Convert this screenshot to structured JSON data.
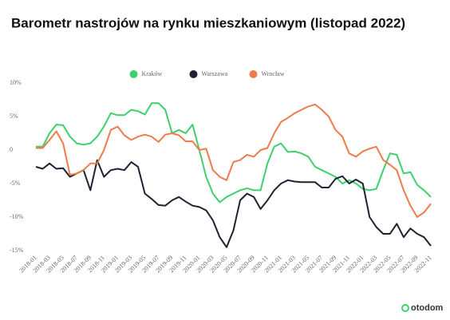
{
  "chart_data": {
    "type": "line",
    "title": "Barometr nastrojów na rynku mieszkaniowym (listopad 2022)",
    "brand": "otodom",
    "categories": [
      "2018-01",
      null,
      "2018-03",
      null,
      "2018-05",
      null,
      "2018-07",
      null,
      "2018-09",
      null,
      "2018-11",
      null,
      "2019-01",
      null,
      "2019-03",
      null,
      "2019-05",
      null,
      "2019-07",
      null,
      "2019-09",
      null,
      "2019-11",
      null,
      "2020-01",
      null,
      "2020-03",
      null,
      "2020-05",
      null,
      "2020-07",
      null,
      "2020-09",
      null,
      "2020-11",
      null,
      "2021-01",
      null,
      "2021-03",
      null,
      "2021-05",
      null,
      "2021-07",
      null,
      "2021-09",
      null,
      "2021-11",
      null,
      "2022-01",
      null,
      "2022-03",
      null,
      "2022-05",
      null,
      "2022-07",
      null,
      "2022-09",
      null,
      "2022-11"
    ],
    "series": [
      {
        "name": "Kraków",
        "color": "#3ecf6e",
        "values": [
          0.5,
          0.5,
          2.5,
          3.8,
          3.7,
          2,
          1,
          0.8,
          1,
          2,
          3.5,
          5.5,
          5.2,
          5.2,
          6,
          5.8,
          5.3,
          7,
          7,
          6,
          2.5,
          3,
          2.5,
          3.8,
          0,
          -4,
          -6.5,
          -7.8,
          -7,
          -6.5,
          -6,
          -5.7,
          -6,
          -6,
          -2,
          0.5,
          1,
          -0.3,
          -0.2,
          -0.5,
          -1,
          -2.5,
          -3,
          -3.5,
          -4,
          -5,
          -4.5,
          -5,
          -5.8,
          -6,
          -5.8,
          -3,
          -0.5,
          -0.7,
          -3.5,
          -3.3,
          -5.2,
          -6,
          -7
        ]
      },
      {
        "name": "Warszawa",
        "color": "#1c2333",
        "values": [
          -2.5,
          -2.8,
          -2,
          -2.8,
          -2.7,
          -4,
          -3.5,
          -3,
          -6,
          -1.5,
          -4,
          -3,
          -2.8,
          -3,
          -1.8,
          -2.5,
          -6.5,
          -7.3,
          -8.2,
          -8.3,
          -7.5,
          -7,
          -7.7,
          -8.3,
          -8.5,
          -9,
          -10.5,
          -13,
          -14.5,
          -12,
          -7.5,
          -6.5,
          -7,
          -8.8,
          -7.5,
          -6,
          -5,
          -4.5,
          -4.7,
          -4.8,
          -4.8,
          -4.8,
          -5.6,
          -5.6,
          -4.3,
          -3.9,
          -5,
          -4.4,
          -5,
          -10,
          -11.5,
          -12.5,
          -12.5,
          -11,
          -13,
          -11.7,
          -12.5,
          -13,
          -14.3
        ]
      },
      {
        "name": "Wrocław",
        "color": "#ee7c4a",
        "values": [
          0.3,
          0.3,
          1.5,
          2.8,
          1,
          -3.7,
          -3.5,
          -3,
          -2,
          -2,
          0,
          3,
          3.5,
          2.2,
          1.5,
          2,
          2.3,
          2,
          1.2,
          2.3,
          2.5,
          2.2,
          1.3,
          1.3,
          0,
          0.2,
          -3,
          -4,
          -4.5,
          -1.8,
          -1.5,
          -0.7,
          -1,
          0,
          0.3,
          2.5,
          4.2,
          4.8,
          5.5,
          6,
          6.5,
          6.8,
          6,
          5,
          3,
          2,
          -0.5,
          -1,
          -0.2,
          0.2,
          0.5,
          -1.5,
          -2.2,
          -3,
          -6,
          -8.3,
          -10,
          -9.3,
          -8
        ]
      }
    ],
    "ylim": [
      -15,
      10
    ],
    "yticks": [
      {
        "value": 10,
        "label": "10%"
      },
      {
        "value": 5,
        "label": "5%"
      },
      0,
      {
        "value": -5,
        "label": "-5%"
      },
      {
        "value": -10,
        "label": "-10%"
      },
      {
        "value": -15,
        "label": "-15%"
      }
    ],
    "grid": false,
    "legend": "top"
  }
}
